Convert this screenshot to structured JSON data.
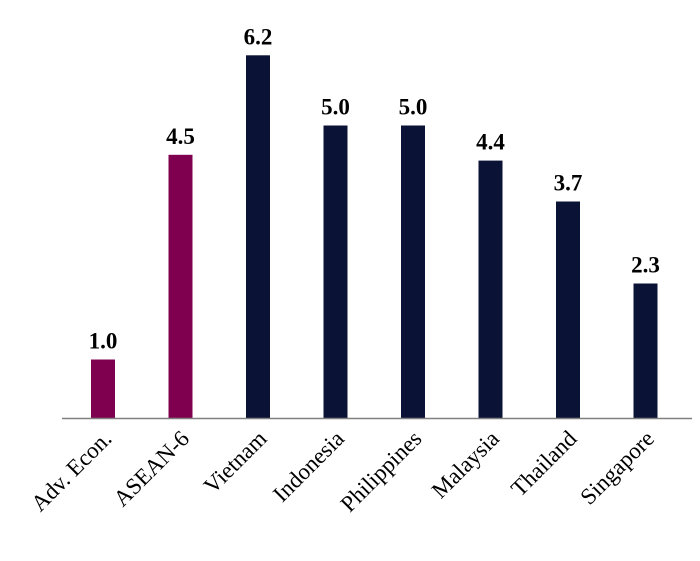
{
  "chart_data": {
    "type": "bar",
    "title": "",
    "xlabel": "",
    "ylabel": "",
    "ylim": [
      0,
      7
    ],
    "grid": false,
    "legend": "none",
    "categories": [
      "Adv. Econ.",
      "ASEAN-6",
      "Vietnam",
      "Indonesia",
      "Philippines",
      "Malaysia",
      "Thailand",
      "Singapore"
    ],
    "values": [
      1.0,
      4.5,
      6.2,
      5.0,
      5.0,
      4.4,
      3.7,
      2.3
    ],
    "value_labels": [
      "1.0",
      "4.5",
      "6.2",
      "5.0",
      "5.0",
      "4.4",
      "3.7",
      "2.3"
    ],
    "bar_colors": [
      "#800050",
      "#800050",
      "#0a1236",
      "#0a1236",
      "#0a1236",
      "#0a1236",
      "#0a1236",
      "#0a1236"
    ],
    "axis_color": "#808080"
  }
}
